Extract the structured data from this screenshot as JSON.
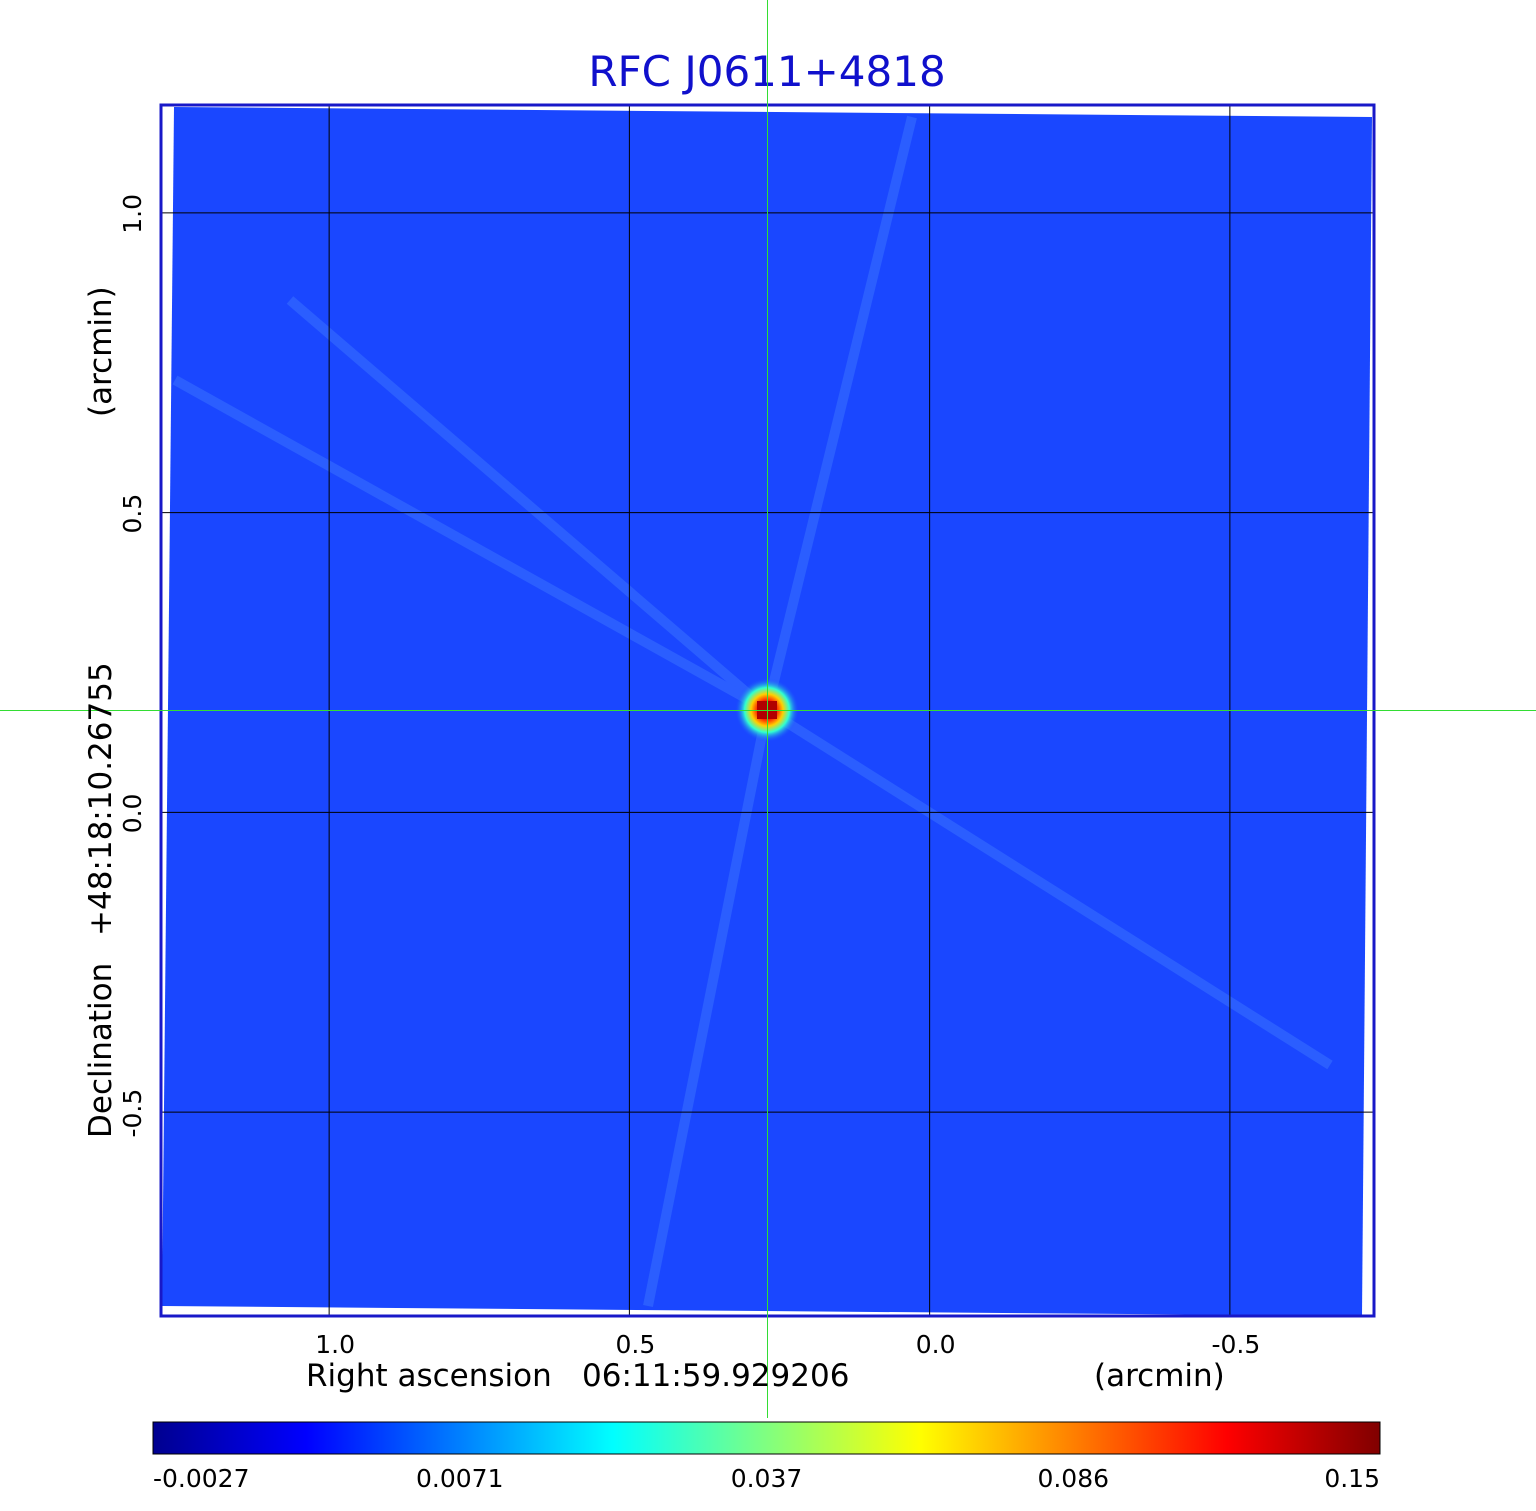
{
  "chart_data": {
    "type": "heatmap",
    "title": "RFC J0611+4818",
    "xlabel": {
      "prefix": "Right ascension",
      "center": "06:11:59.929206",
      "unit": "(arcmin)"
    },
    "ylabel": {
      "prefix": "Declination",
      "center": "+48:18:10.26755",
      "unit": "(arcmin)"
    },
    "x_ticks": [
      {
        "value": 1.0,
        "label": "1.0"
      },
      {
        "value": 0.5,
        "label": "0.5"
      },
      {
        "value": 0.0,
        "label": "0.0"
      },
      {
        "value": -0.5,
        "label": "-0.5"
      }
    ],
    "y_ticks": [
      {
        "value": 1.0,
        "label": "1.0"
      },
      {
        "value": 0.5,
        "label": "0.5"
      },
      {
        "value": 0.0,
        "label": "0.0"
      },
      {
        "value": -0.5,
        "label": "-0.5"
      }
    ],
    "xlim": [
      1.28,
      -0.74
    ],
    "ylim": [
      -0.84,
      1.18
    ],
    "x_reversed": true,
    "grid": true,
    "crosshair": {
      "x": 0.27,
      "y": 0.17,
      "color": "#33dd33"
    },
    "source": {
      "x": 0.27,
      "y": 0.17,
      "peak": 0.15
    },
    "background_level": 0.0,
    "colorbar": {
      "ticks": [
        {
          "value": -0.0027,
          "label": "-0.0027"
        },
        {
          "value": 0.0071,
          "label": "0.0071"
        },
        {
          "value": 0.037,
          "label": "0.037"
        },
        {
          "value": 0.086,
          "label": "0.086"
        },
        {
          "value": 0.15,
          "label": "0.15"
        }
      ],
      "min": -0.0027,
      "max": 0.15,
      "colormap": "jet",
      "orientation": "horizontal",
      "placement": "bottom"
    }
  },
  "colors": {
    "title": "#1010cc",
    "frame": "#1818c8",
    "grid": "#000000",
    "background_map": "#1a47ff"
  }
}
